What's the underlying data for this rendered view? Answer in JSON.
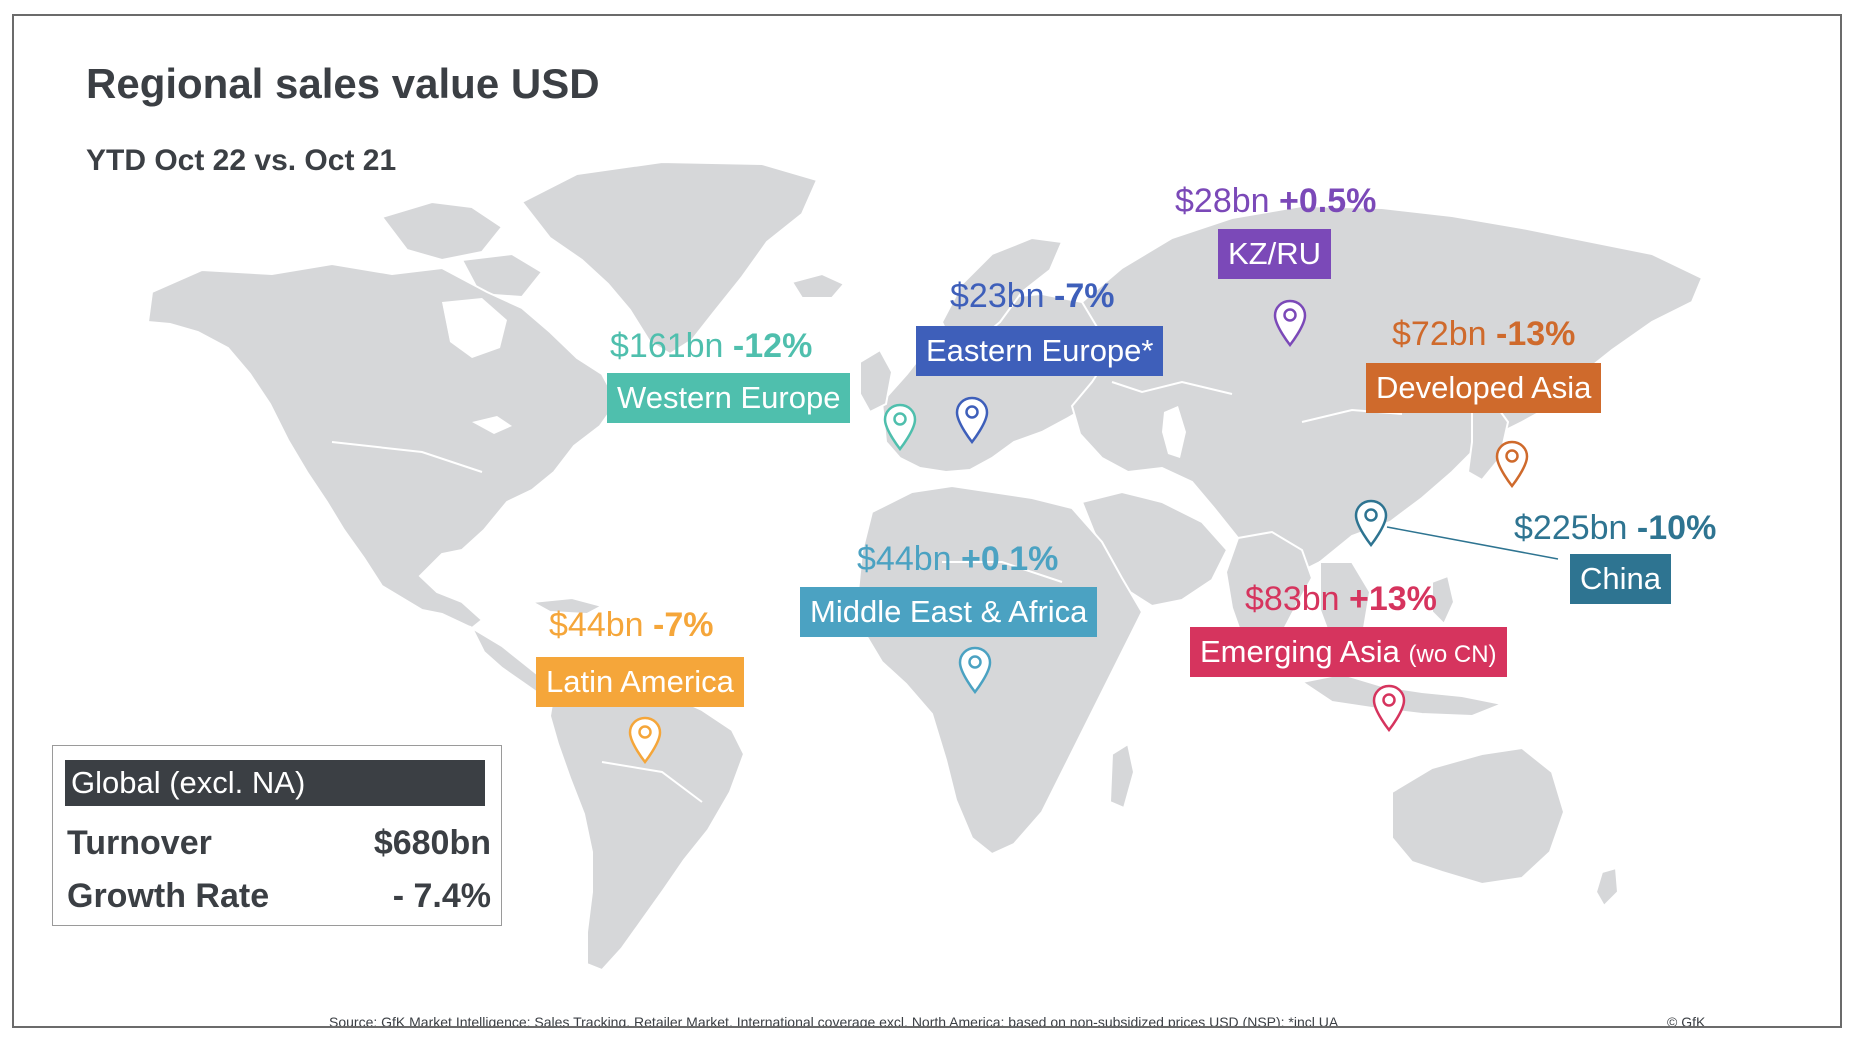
{
  "header": {
    "title": "Regional sales value USD",
    "subtitle": "YTD Oct 22 vs. Oct 21"
  },
  "regions": [
    {
      "key": "western_europe",
      "value": "$161bn",
      "growth": "-12%",
      "label": "Western Europe",
      "label_sub": "",
      "color": "#4fbfad"
    },
    {
      "key": "eastern_europe",
      "value": "$23bn",
      "growth": "-7%",
      "label": "Eastern Europe*",
      "label_sub": "",
      "color": "#3e5fba"
    },
    {
      "key": "kz_ru",
      "value": "$28bn",
      "growth": "+0.5%",
      "label": "KZ/RU",
      "label_sub": "",
      "color": "#7b49b8"
    },
    {
      "key": "developed_asia",
      "value": "$72bn",
      "growth": "-13%",
      "label": "Developed Asia",
      "label_sub": "",
      "color": "#cf6a2c"
    },
    {
      "key": "china",
      "value": "$225bn",
      "growth": "-10%",
      "label": "China",
      "label_sub": "",
      "color": "#2e7491"
    },
    {
      "key": "middle_east_africa",
      "value": "$44bn",
      "growth": "+0.1%",
      "label": "Middle East & Africa",
      "label_sub": "",
      "color": "#4ba2c2"
    },
    {
      "key": "emerging_asia",
      "value": "$83bn",
      "growth": "+13%",
      "label": "Emerging Asia",
      "label_sub": "(wo CN)",
      "color": "#d6345e"
    },
    {
      "key": "latin_america",
      "value": "$44bn",
      "growth": "-7%",
      "label": "Latin America",
      "label_sub": "",
      "color": "#f5a63a"
    }
  ],
  "global": {
    "heading": "Global (excl. NA)",
    "turnover_label": "Turnover",
    "turnover_value": "$680bn",
    "growth_label": "Growth Rate",
    "growth_value": "- 7.4%"
  },
  "footer": {
    "source": "Source: GfK Market Intelligence: Sales Tracking, Retailer Market, International coverage excl. North America; based on non-subsidized prices USD (NSP); *incl UA",
    "copyright": "© GfK"
  },
  "icons": {
    "pin": "map-pin-icon"
  }
}
